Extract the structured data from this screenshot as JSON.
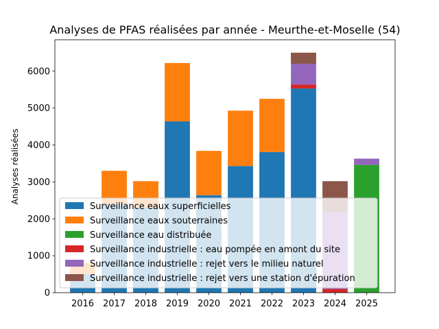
{
  "chart_data": {
    "type": "bar",
    "stacked": true,
    "title": "Analyses de PFAS réalisées par année - Meurthe-et-Moselle (54)",
    "xlabel": "",
    "ylabel": "Analyses réalisées",
    "ylim": [
      0,
      6850
    ],
    "yticks": [
      0,
      1000,
      2000,
      3000,
      4000,
      5000,
      6000
    ],
    "grid": false,
    "legend_position": "lower-left",
    "categories": [
      "2016",
      "2017",
      "2018",
      "2019",
      "2020",
      "2021",
      "2022",
      "2023",
      "2024",
      "2025"
    ],
    "series": [
      {
        "name": "Surveillance eaux superficielles",
        "color": "#1f77b4",
        "values": [
          500,
          2400,
          2300,
          4640,
          2640,
          3430,
          3810,
          5530,
          0,
          0
        ]
      },
      {
        "name": "Surveillance eaux souterraines",
        "color": "#ff7f0e",
        "values": [
          300,
          900,
          720,
          1580,
          1200,
          1500,
          1440,
          0,
          0,
          0
        ]
      },
      {
        "name": "Surveillance eau distribuée",
        "color": "#2ca02c",
        "values": [
          0,
          0,
          0,
          0,
          0,
          0,
          0,
          0,
          0,
          3460
        ]
      },
      {
        "name": "Surveillance industrielle : eau pompée en amont du site",
        "color": "#d62728",
        "values": [
          0,
          0,
          0,
          0,
          0,
          0,
          0,
          110,
          100,
          0
        ]
      },
      {
        "name": "Surveillance industrielle : rejet vers le milieu naturel",
        "color": "#9467bd",
        "values": [
          0,
          0,
          0,
          0,
          0,
          0,
          0,
          560,
          2070,
          170
        ]
      },
      {
        "name": "Surveillance industrielle : rejet vers une station d'épuration",
        "color": "#8c564b",
        "values": [
          0,
          0,
          0,
          0,
          0,
          0,
          0,
          300,
          850,
          0
        ]
      }
    ]
  }
}
